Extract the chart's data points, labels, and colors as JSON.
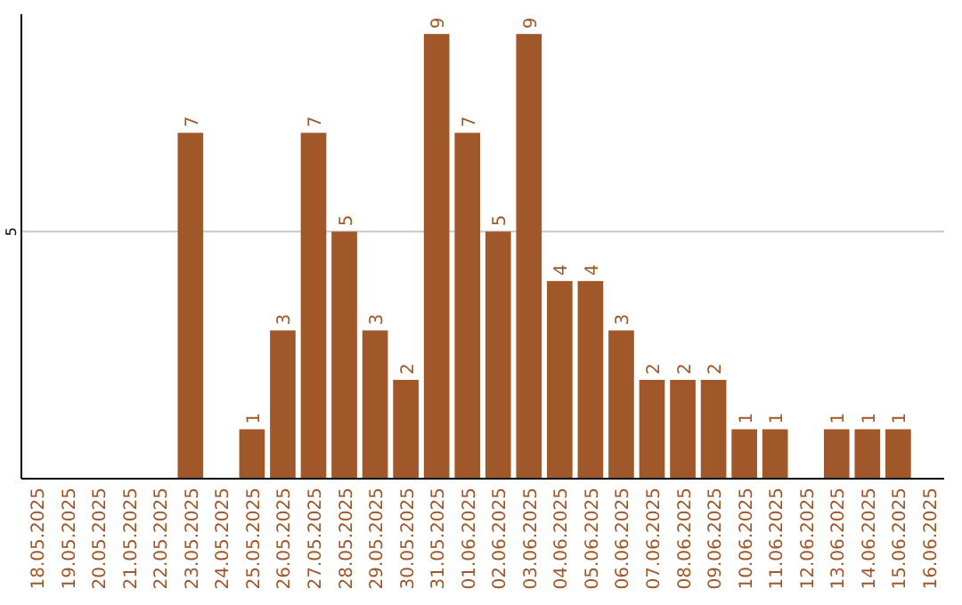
{
  "chart_data": {
    "type": "bar",
    "categories": [
      "18.05.2025",
      "19.05.2025",
      "20.05.2025",
      "21.05.2025",
      "22.05.2025",
      "23.05.2025",
      "24.05.2025",
      "25.05.2025",
      "26.05.2025",
      "27.05.2025",
      "28.05.2025",
      "29.05.2025",
      "30.05.2025",
      "31.05.2025",
      "01.06.2025",
      "02.06.2025",
      "03.06.2025",
      "04.06.2025",
      "05.06.2025",
      "06.06.2025",
      "07.06.2025",
      "08.06.2025",
      "09.06.2025",
      "10.06.2025",
      "11.06.2025",
      "12.06.2025",
      "13.06.2025",
      "14.06.2025",
      "15.06.2025",
      "16.06.2025"
    ],
    "values": [
      0,
      0,
      0,
      0,
      0,
      7,
      0,
      1,
      3,
      7,
      5,
      3,
      2,
      9,
      7,
      5,
      9,
      4,
      4,
      3,
      2,
      2,
      2,
      1,
      1,
      0,
      1,
      1,
      1,
      0
    ],
    "value_labels": [
      null,
      null,
      null,
      null,
      null,
      "7",
      null,
      "1",
      "3",
      "7",
      "5",
      "3",
      "2",
      "9",
      "7",
      "5",
      "9",
      "4",
      "4",
      "3",
      "2",
      "2",
      "2",
      "1",
      "1",
      null,
      "1",
      "1",
      "1",
      null
    ],
    "color": "#a0572a",
    "ylim": [
      0,
      9.4
    ],
    "yticks": [
      5
    ],
    "grid": "y"
  }
}
